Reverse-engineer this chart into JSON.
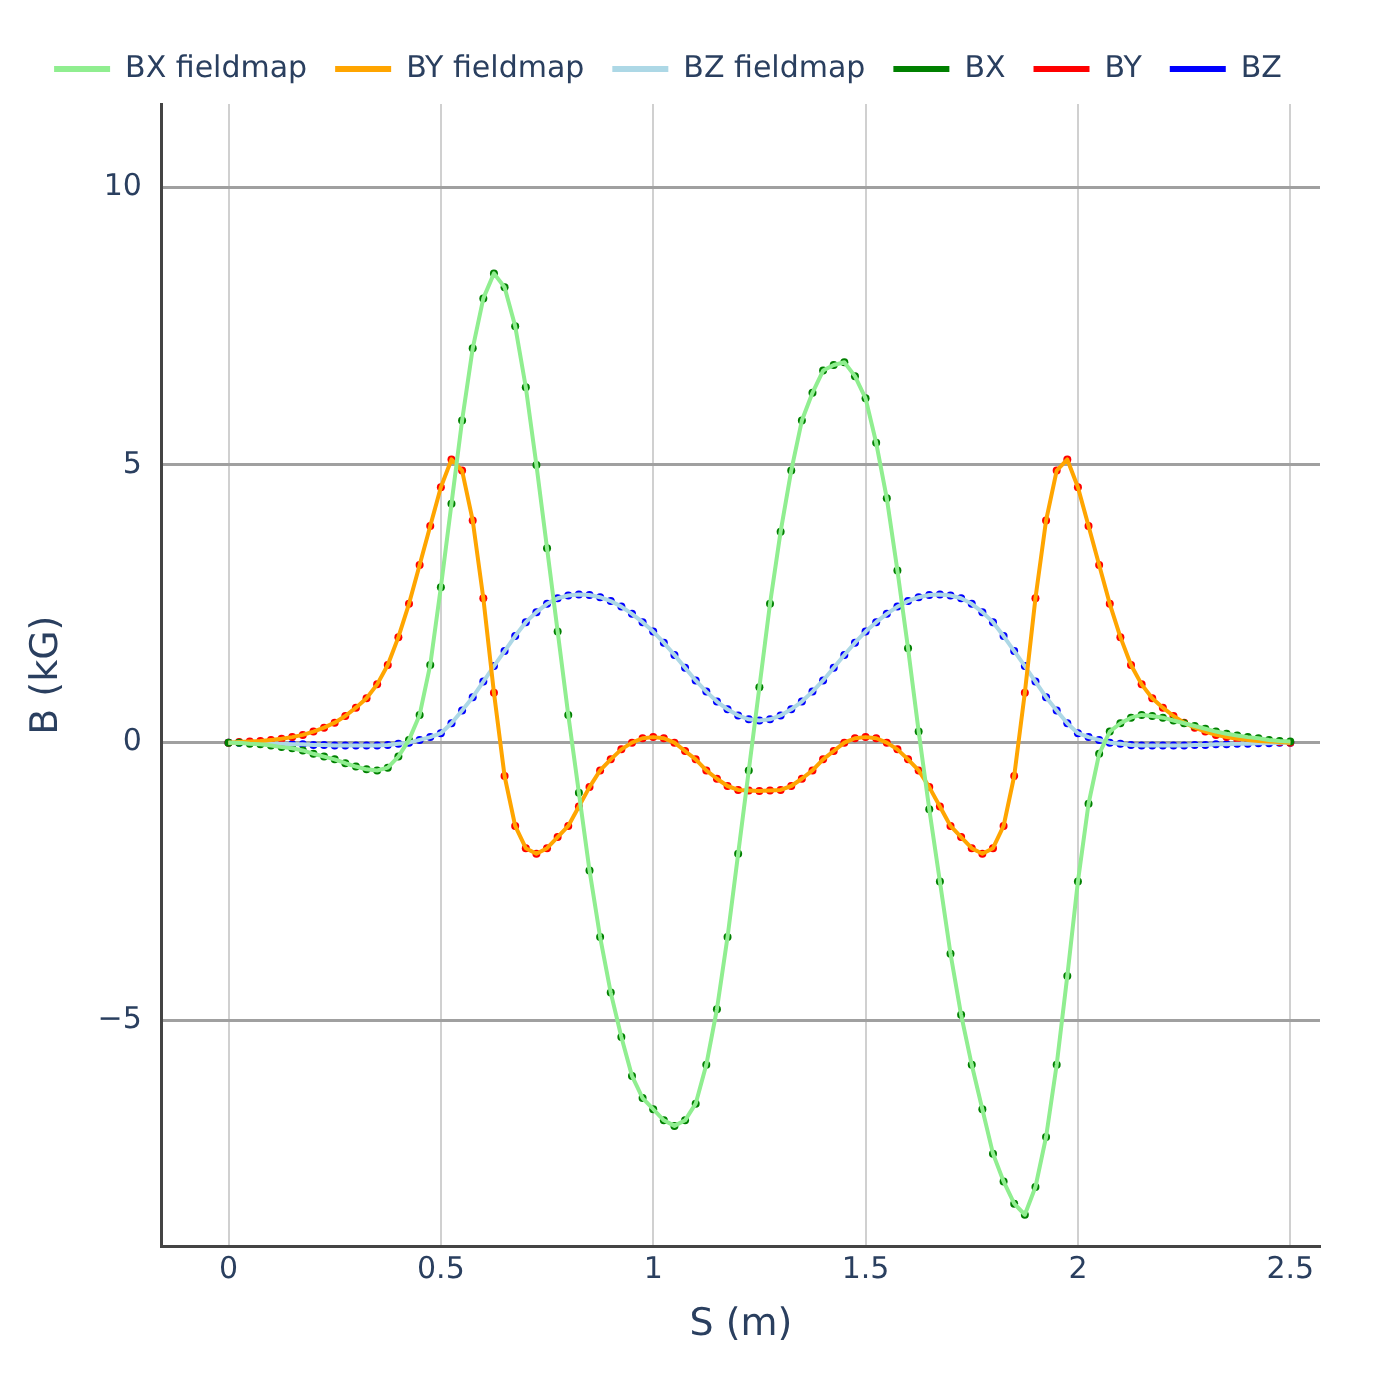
{
  "chart_data": {
    "type": "line",
    "xlabel": "S (m)",
    "ylabel": "B (kG)",
    "xlim": [
      -0.157,
      2.57
    ],
    "ylim": [
      -9.07,
      11.5
    ],
    "xticks": [
      0,
      0.5,
      1,
      1.5,
      2,
      2.5
    ],
    "yticks": [
      -5,
      0,
      5,
      10
    ],
    "grid": true,
    "legend": "top",
    "x": [
      0,
      0.025,
      0.05,
      0.075,
      0.1,
      0.125,
      0.15,
      0.175,
      0.2,
      0.225,
      0.25,
      0.275,
      0.3,
      0.325,
      0.35,
      0.375,
      0.4,
      0.425,
      0.45,
      0.475,
      0.5,
      0.525,
      0.55,
      0.575,
      0.6,
      0.625,
      0.65,
      0.675,
      0.7,
      0.725,
      0.75,
      0.775,
      0.8,
      0.825,
      0.85,
      0.875,
      0.9,
      0.925,
      0.95,
      0.975,
      1,
      1.025,
      1.05,
      1.075,
      1.1,
      1.125,
      1.15,
      1.175,
      1.2,
      1.225,
      1.25,
      1.275,
      1.3,
      1.325,
      1.35,
      1.375,
      1.4,
      1.425,
      1.45,
      1.475,
      1.5,
      1.525,
      1.55,
      1.575,
      1.6,
      1.625,
      1.65,
      1.675,
      1.7,
      1.725,
      1.75,
      1.775,
      1.8,
      1.825,
      1.85,
      1.875,
      1.9,
      1.925,
      1.95,
      1.975,
      2,
      2.025,
      2.05,
      2.075,
      2.1,
      2.125,
      2.15,
      2.175,
      2.2,
      2.225,
      2.25,
      2.275,
      2.3,
      2.325,
      2.35,
      2.375,
      2.4,
      2.425,
      2.45,
      2.475,
      2.5
    ],
    "series": [
      {
        "name": "BX fieldmap",
        "marker": "none",
        "color": "#90ee90",
        "values": [
          0,
          0,
          -0.02,
          -0.03,
          -0.05,
          -0.08,
          -0.1,
          -0.14,
          -0.2,
          -0.25,
          -0.3,
          -0.37,
          -0.43,
          -0.48,
          -0.5,
          -0.45,
          -0.25,
          0.05,
          0.5,
          1.4,
          2.8,
          4.3,
          5.8,
          7.1,
          8,
          8.45,
          8.2,
          7.5,
          6.4,
          5,
          3.5,
          2,
          0.5,
          -0.9,
          -2.3,
          -3.5,
          -4.5,
          -5.3,
          -6,
          -6.4,
          -6.6,
          -6.8,
          -6.9,
          -6.8,
          -6.5,
          -5.8,
          -4.8,
          -3.5,
          -2,
          -0.5,
          1,
          2.5,
          3.8,
          4.9,
          5.8,
          6.3,
          6.7,
          6.8,
          6.85,
          6.6,
          6.2,
          5.4,
          4.4,
          3.1,
          1.7,
          0.2,
          -1.2,
          -2.5,
          -3.8,
          -4.9,
          -5.8,
          -6.6,
          -7.4,
          -7.9,
          -8.3,
          -8.5,
          -8,
          -7.1,
          -5.8,
          -4.2,
          -2.5,
          -1.1,
          -0.2,
          0.2,
          0.35,
          0.45,
          0.5,
          0.48,
          0.45,
          0.4,
          0.35,
          0.3,
          0.25,
          0.2,
          0.16,
          0.13,
          0.1,
          0.08,
          0.05,
          0.03,
          0.02
        ]
      },
      {
        "name": "BY fieldmap",
        "marker": "none",
        "color": "#ffa500",
        "values": [
          0,
          0.01,
          0.02,
          0.03,
          0.05,
          0.07,
          0.1,
          0.14,
          0.2,
          0.27,
          0.36,
          0.48,
          0.63,
          0.8,
          1.05,
          1.4,
          1.9,
          2.5,
          3.2,
          3.9,
          4.6,
          5.1,
          4.9,
          4,
          2.6,
          0.9,
          -0.6,
          -1.5,
          -1.9,
          -2,
          -1.9,
          -1.7,
          -1.5,
          -1.15,
          -0.8,
          -0.5,
          -0.3,
          -0.12,
          0,
          0.08,
          0.1,
          0.08,
          0,
          -0.15,
          -0.3,
          -0.5,
          -0.65,
          -0.78,
          -0.85,
          -0.86,
          -0.87,
          -0.86,
          -0.85,
          -0.78,
          -0.65,
          -0.5,
          -0.3,
          -0.15,
          0,
          0.08,
          0.1,
          0.08,
          0,
          -0.12,
          -0.3,
          -0.5,
          -0.8,
          -1.15,
          -1.5,
          -1.7,
          -1.9,
          -2,
          -1.9,
          -1.5,
          -0.6,
          0.9,
          2.6,
          4,
          4.9,
          5.1,
          4.6,
          3.9,
          3.2,
          2.5,
          1.9,
          1.4,
          1.05,
          0.8,
          0.63,
          0.48,
          0.36,
          0.27,
          0.2,
          0.14,
          0.1,
          0.07,
          0.05,
          0.03,
          0.02,
          0.01,
          0
        ]
      },
      {
        "name": "BZ fieldmap",
        "marker": "none",
        "color": "#add8e6",
        "values": [
          0,
          0,
          -0.01,
          -0.01,
          -0.02,
          -0.02,
          -0.03,
          -0.03,
          -0.04,
          -0.04,
          -0.05,
          -0.05,
          -0.05,
          -0.05,
          -0.05,
          -0.04,
          -0.02,
          0,
          0.05,
          0.1,
          0.17,
          0.35,
          0.58,
          0.82,
          1.1,
          1.38,
          1.65,
          1.92,
          2.17,
          2.35,
          2.5,
          2.6,
          2.65,
          2.67,
          2.66,
          2.62,
          2.55,
          2.45,
          2.32,
          2.17,
          2,
          1.8,
          1.58,
          1.35,
          1.12,
          0.92,
          0.74,
          0.6,
          0.49,
          0.42,
          0.4,
          0.42,
          0.49,
          0.6,
          0.74,
          0.92,
          1.12,
          1.35,
          1.58,
          1.8,
          2,
          2.17,
          2.32,
          2.45,
          2.55,
          2.62,
          2.66,
          2.67,
          2.65,
          2.6,
          2.5,
          2.35,
          2.17,
          1.92,
          1.65,
          1.38,
          1.1,
          0.82,
          0.58,
          0.35,
          0.17,
          0.1,
          0.05,
          0,
          -0.02,
          -0.04,
          -0.05,
          -0.05,
          -0.05,
          -0.05,
          -0.05,
          -0.04,
          -0.04,
          -0.03,
          -0.03,
          -0.02,
          -0.02,
          -0.01,
          -0.01,
          0,
          0
        ]
      },
      {
        "name": "BX",
        "type": "scatter",
        "marker": "circle",
        "color": "#008000",
        "values": [
          0,
          0,
          -0.02,
          -0.03,
          -0.05,
          -0.08,
          -0.1,
          -0.14,
          -0.2,
          -0.25,
          -0.3,
          -0.37,
          -0.43,
          -0.48,
          -0.5,
          -0.45,
          -0.25,
          0.05,
          0.5,
          1.4,
          2.8,
          4.3,
          5.8,
          7.1,
          8,
          8.45,
          8.2,
          7.5,
          6.4,
          5,
          3.5,
          2,
          0.5,
          -0.9,
          -2.3,
          -3.5,
          -4.5,
          -5.3,
          -6,
          -6.4,
          -6.6,
          -6.8,
          -6.9,
          -6.8,
          -6.5,
          -5.8,
          -4.8,
          -3.5,
          -2,
          -0.5,
          1,
          2.5,
          3.8,
          4.9,
          5.8,
          6.3,
          6.7,
          6.8,
          6.85,
          6.6,
          6.2,
          5.4,
          4.4,
          3.1,
          1.7,
          0.2,
          -1.2,
          -2.5,
          -3.8,
          -4.9,
          -5.8,
          -6.6,
          -7.4,
          -7.9,
          -8.3,
          -8.5,
          -8,
          -7.1,
          -5.8,
          -4.2,
          -2.5,
          -1.1,
          -0.2,
          0.2,
          0.35,
          0.45,
          0.5,
          0.48,
          0.45,
          0.4,
          0.35,
          0.3,
          0.25,
          0.2,
          0.16,
          0.13,
          0.1,
          0.08,
          0.05,
          0.03,
          0.02
        ]
      },
      {
        "name": "BY",
        "type": "scatter",
        "marker": "circle",
        "color": "#ff0000",
        "values": [
          0,
          0.01,
          0.02,
          0.03,
          0.05,
          0.07,
          0.1,
          0.14,
          0.2,
          0.27,
          0.36,
          0.48,
          0.63,
          0.8,
          1.05,
          1.4,
          1.9,
          2.5,
          3.2,
          3.9,
          4.6,
          5.1,
          4.9,
          4,
          2.6,
          0.9,
          -0.6,
          -1.5,
          -1.9,
          -2,
          -1.9,
          -1.7,
          -1.5,
          -1.15,
          -0.8,
          -0.5,
          -0.3,
          -0.12,
          0,
          0.08,
          0.1,
          0.08,
          0,
          -0.15,
          -0.3,
          -0.5,
          -0.65,
          -0.78,
          -0.85,
          -0.86,
          -0.87,
          -0.86,
          -0.85,
          -0.78,
          -0.65,
          -0.5,
          -0.3,
          -0.15,
          0,
          0.08,
          0.1,
          0.08,
          0,
          -0.12,
          -0.3,
          -0.5,
          -0.8,
          -1.15,
          -1.5,
          -1.7,
          -1.9,
          -2,
          -1.9,
          -1.5,
          -0.6,
          0.9,
          2.6,
          4,
          4.9,
          5.1,
          4.6,
          3.9,
          3.2,
          2.5,
          1.9,
          1.4,
          1.05,
          0.8,
          0.63,
          0.48,
          0.36,
          0.27,
          0.2,
          0.14,
          0.1,
          0.07,
          null,
          null,
          null,
          0.01,
          0
        ]
      },
      {
        "name": "BZ",
        "type": "scatter",
        "marker": "circle",
        "color": "#0000ff",
        "values": [
          0,
          0,
          null,
          null,
          null,
          null,
          -0.03,
          -0.03,
          -0.04,
          -0.04,
          -0.05,
          -0.05,
          -0.05,
          -0.05,
          -0.05,
          -0.04,
          -0.02,
          0,
          0.05,
          0.1,
          0.17,
          0.35,
          0.58,
          0.82,
          1.1,
          1.38,
          1.65,
          1.92,
          2.17,
          2.35,
          2.5,
          2.6,
          2.65,
          2.67,
          2.66,
          2.62,
          2.55,
          2.45,
          2.32,
          2.17,
          2,
          1.8,
          1.58,
          1.35,
          1.12,
          0.92,
          0.74,
          0.6,
          0.49,
          0.42,
          0.4,
          0.42,
          0.49,
          0.6,
          0.74,
          0.92,
          1.12,
          1.35,
          1.58,
          1.8,
          2,
          2.17,
          2.32,
          2.45,
          2.55,
          2.62,
          2.66,
          2.67,
          2.65,
          2.6,
          2.5,
          2.35,
          2.17,
          1.92,
          1.65,
          1.38,
          1.1,
          0.82,
          0.58,
          0.35,
          0.17,
          0.1,
          0.05,
          0,
          -0.02,
          -0.04,
          -0.05,
          -0.05,
          -0.05,
          -0.05,
          -0.05,
          -0.04,
          -0.04,
          -0.03,
          -0.03,
          -0.02,
          -0.02,
          -0.01,
          -0.01,
          0,
          0
        ]
      }
    ]
  }
}
